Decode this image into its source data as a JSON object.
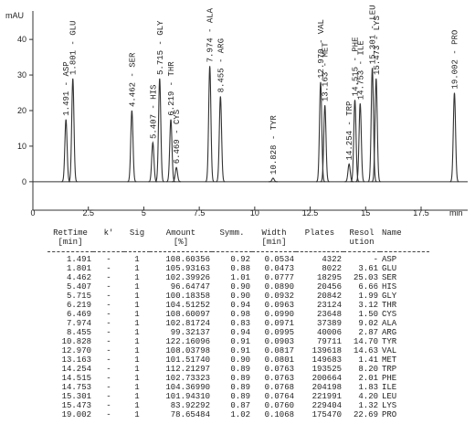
{
  "chart_data": {
    "type": "chromatogram",
    "y_label": "mAU",
    "x_label": "min",
    "color": "#333333",
    "x": [
      1.491,
      1.801,
      4.462,
      5.407,
      5.715,
      6.219,
      6.469,
      7.974,
      8.455,
      10.828,
      12.97,
      13.163,
      14.254,
      14.515,
      14.753,
      15.301,
      15.473,
      19.002
    ],
    "values": [
      17.5,
      29,
      20,
      11,
      29,
      17.5,
      4,
      32.5,
      24,
      1,
      28,
      21.5,
      5,
      23,
      22,
      32,
      29,
      25
    ],
    "labels": [
      "1.491 - ASP",
      "1.801 - GLU",
      "4.462 - SER",
      "5.407 - HIS",
      "5.715 - GLY",
      "6.219 - THR",
      "6.469 - CYS",
      "7.974 - ALA",
      "8.455 - ARG",
      "10.828 - TYR",
      "12.970 - VAL",
      "13.163 - MET",
      "14.254 - TRP",
      "14.515 - PHE",
      "14.753 - ILE",
      "15.301 - LEU",
      "15.473 - LYS",
      "19.002 - PRO"
    ],
    "xlim": [
      0,
      19.6
    ],
    "ylim": [
      -8,
      48
    ],
    "xticks": [
      0,
      2.5,
      5,
      7.5,
      10,
      12.5,
      15,
      17.5
    ],
    "yticks": [
      0,
      10,
      20,
      30,
      40
    ]
  },
  "table": {
    "header": [
      [
        "RetTime",
        "[min]"
      ],
      [
        "k'"
      ],
      [
        "Sig"
      ],
      [
        "Amount",
        "[%]"
      ],
      [
        "Symm."
      ],
      [
        "Width",
        "[min]"
      ],
      [
        "Plates"
      ],
      [
        "Resol",
        "ution"
      ],
      [
        "Name"
      ]
    ],
    "rows": [
      [
        "1.491",
        "-",
        "1",
        "108.60356",
        "0.92",
        "0.0534",
        "4322",
        "-",
        "ASP"
      ],
      [
        "1.801",
        "-",
        "1",
        "105.93163",
        "0.88",
        "0.0473",
        "8022",
        "3.61",
        "GLU"
      ],
      [
        "4.462",
        "-",
        "1",
        "102.39926",
        "1.01",
        "0.0777",
        "18295",
        "25.03",
        "SER"
      ],
      [
        "5.407",
        "-",
        "1",
        "96.64747",
        "0.90",
        "0.0890",
        "20456",
        "6.66",
        "HIS"
      ],
      [
        "5.715",
        "-",
        "1",
        "100.18358",
        "0.90",
        "0.0932",
        "20842",
        "1.99",
        "GLY"
      ],
      [
        "6.219",
        "-",
        "1",
        "104.51252",
        "0.94",
        "0.0963",
        "23124",
        "3.12",
        "THR"
      ],
      [
        "6.469",
        "-",
        "1",
        "108.60097",
        "0.98",
        "0.0990",
        "23648",
        "1.50",
        "CYS"
      ],
      [
        "7.974",
        "-",
        "1",
        "102.81724",
        "0.83",
        "0.0971",
        "37389",
        "9.02",
        "ALA"
      ],
      [
        "8.455",
        "-",
        "1",
        "99.32137",
        "0.94",
        "0.0995",
        "40006",
        "2.87",
        "ARG"
      ],
      [
        "10.828",
        "-",
        "1",
        "122.16096",
        "0.91",
        "0.0903",
        "79711",
        "14.70",
        "TYR"
      ],
      [
        "12.970",
        "-",
        "1",
        "108.03798",
        "0.91",
        "0.0817",
        "139618",
        "14.63",
        "VAL"
      ],
      [
        "13.163",
        "-",
        "1",
        "101.51740",
        "0.90",
        "0.0801",
        "149683",
        "1.41",
        "MET"
      ],
      [
        "14.254",
        "-",
        "1",
        "112.21297",
        "0.89",
        "0.0763",
        "193525",
        "8.20",
        "TRP"
      ],
      [
        "14.515",
        "-",
        "1",
        "102.73323",
        "0.89",
        "0.0763",
        "200664",
        "2.01",
        "PHE"
      ],
      [
        "14.753",
        "-",
        "1",
        "104.36990",
        "0.89",
        "0.0768",
        "204198",
        "1.83",
        "ILE"
      ],
      [
        "15.301",
        "-",
        "1",
        "101.94310",
        "0.89",
        "0.0764",
        "221991",
        "4.20",
        "LEU"
      ],
      [
        "15.473",
        "-",
        "1",
        "83.92292",
        "0.87",
        "0.0760",
        "229404",
        "1.32",
        "LYS"
      ],
      [
        "19.002",
        "-",
        "1",
        "78.65484",
        "1.02",
        "0.1068",
        "175470",
        "22.69",
        "PRO"
      ]
    ]
  }
}
